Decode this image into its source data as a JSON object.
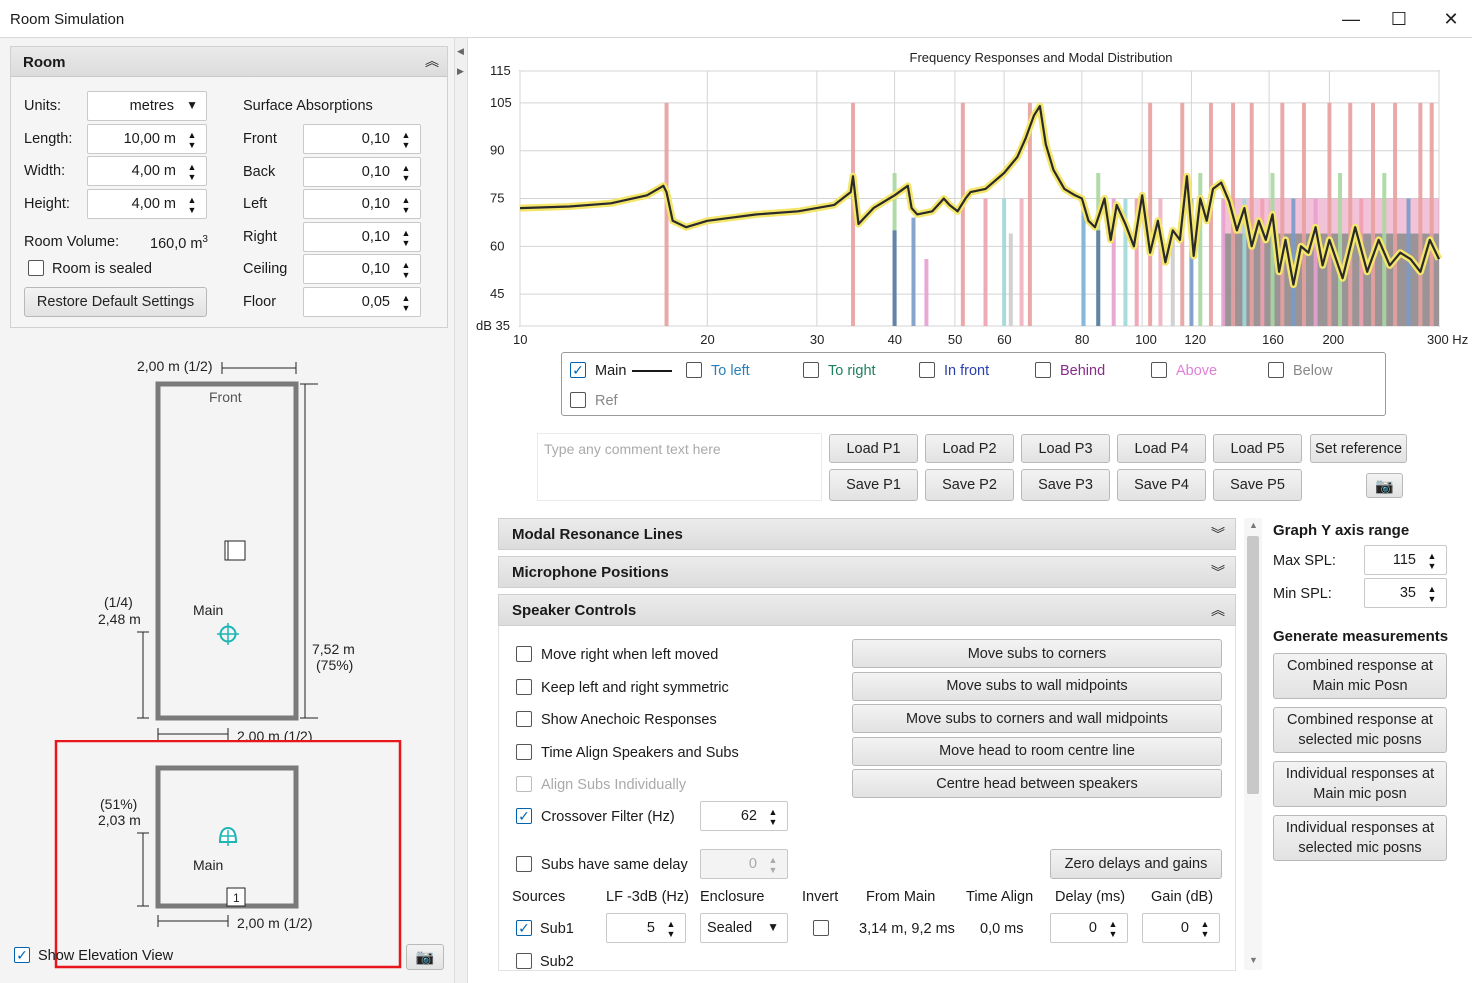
{
  "window": {
    "title": "Room Simulation",
    "minimize": "—",
    "maximize": "☐",
    "close": "✕"
  },
  "room": {
    "header": "Room",
    "collapse_icon": "chevron-double-up",
    "units_label": "Units:",
    "units_value": "metres",
    "length_label": "Length:",
    "length_value": "10,00 m",
    "width_label": "Width:",
    "width_value": "4,00 m",
    "height_label": "Height:",
    "height_value": "4,00 m",
    "volume_label": "Room Volume:",
    "volume_value": "160,0 m",
    "volume_sup": "3",
    "sealed_label": "Room is sealed",
    "restore_label": "Restore Default Settings",
    "absorption_title": "Surface Absorptions",
    "surfaces": [
      {
        "name": "Front",
        "value": "0,10"
      },
      {
        "name": "Back",
        "value": "0,10"
      },
      {
        "name": "Left",
        "value": "0,10"
      },
      {
        "name": "Right",
        "value": "0,10"
      },
      {
        "name": "Ceiling",
        "value": "0,10"
      },
      {
        "name": "Floor",
        "value": "0,05"
      }
    ]
  },
  "plan": {
    "top_dim": "2,00 m (1/2)",
    "front_label": "Front",
    "mic_label": "Main",
    "left_dim_a": "(1/4)",
    "left_dim_b": "2,48 m",
    "right_dim_a": "7,52 m",
    "right_dim_b": "(75%)",
    "bottom_dim": "2,00 m (1/2)"
  },
  "elevation": {
    "left_dim_a": "(51%)",
    "left_dim_b": "2,03 m",
    "mic_label": "Main",
    "speaker_num": "1",
    "bottom_dim": "2,00 m (1/2)",
    "show_label": "Show Elevation View"
  },
  "chart_data": {
    "type": "line",
    "title": "Frequency Responses and Modal Distribution",
    "xscale": "log",
    "xlim": [
      10,
      300
    ],
    "ylim": [
      35,
      115
    ],
    "x_ticks": [
      {
        "v": 10,
        "t": "10"
      },
      {
        "v": 20,
        "t": "20"
      },
      {
        "v": 30,
        "t": "30"
      },
      {
        "v": 40,
        "t": "40"
      },
      {
        "v": 50,
        "t": "50"
      },
      {
        "v": 60,
        "t": "60"
      },
      {
        "v": 80,
        "t": "80"
      },
      {
        "v": 100,
        "t": "100"
      },
      {
        "v": 120,
        "t": "120"
      },
      {
        "v": 160,
        "t": "160"
      },
      {
        "v": 200,
        "t": "200"
      },
      {
        "v": 300,
        "t": "300 Hz"
      }
    ],
    "y_ticks": [
      {
        "v": 115,
        "t": "115"
      },
      {
        "v": 105,
        "t": "105"
      },
      {
        "v": 90,
        "t": "90"
      },
      {
        "v": 75,
        "t": "75"
      },
      {
        "v": 60,
        "t": "60"
      },
      {
        "v": 45,
        "t": "45"
      },
      {
        "v": 35,
        "t": "dB 35"
      }
    ],
    "grid": true,
    "series": [
      {
        "name": "Main",
        "x": [
          10,
          12,
          14,
          16,
          17,
          17.2,
          17.6,
          18.5,
          20,
          24,
          28,
          32,
          34,
          34.3,
          35,
          37,
          40,
          42,
          42.6,
          43.5,
          46,
          47.5,
          48,
          49,
          50.5,
          52,
          53,
          56,
          60,
          63,
          65,
          67,
          68.5,
          70,
          72,
          75,
          78,
          80,
          82,
          84,
          86,
          87,
          89,
          91,
          94,
          97,
          100,
          103,
          106,
          109,
          112,
          115,
          118,
          121,
          124,
          127,
          130,
          134,
          138,
          142,
          146,
          150,
          154,
          158,
          162,
          166,
          170,
          175,
          180,
          185,
          190,
          195,
          200,
          210,
          220,
          230,
          240,
          250,
          260,
          270,
          280,
          290,
          300
        ],
        "y": [
          72,
          72.5,
          73.5,
          76,
          79,
          77,
          68,
          66,
          68,
          70,
          71,
          73,
          77,
          82,
          67,
          72,
          76,
          79,
          72,
          70,
          71,
          74,
          75,
          73,
          71,
          75,
          77,
          78,
          83,
          88,
          94,
          101,
          104,
          92,
          84,
          78,
          76,
          75,
          68,
          66,
          72,
          75,
          62,
          73,
          67,
          60,
          76,
          58,
          68,
          55,
          65,
          62,
          82,
          57,
          75,
          68,
          78,
          80,
          74,
          65,
          72,
          60,
          68,
          62,
          70,
          52,
          62,
          48,
          60,
          58,
          66,
          54,
          62,
          50,
          66,
          52,
          62,
          54,
          58,
          56,
          52,
          62,
          56
        ]
      }
    ],
    "modal_lines": [
      {
        "f": 17.2,
        "h": 105,
        "c": "#e8a0a0"
      },
      {
        "f": 34.3,
        "h": 105,
        "c": "#e8a0a0"
      },
      {
        "f": 40,
        "h": 83,
        "c": "#a8d8a0"
      },
      {
        "f": 40,
        "h": 65,
        "c": "#5b7aa8"
      },
      {
        "f": 42.9,
        "h": 69,
        "c": "#7a9ac8"
      },
      {
        "f": 45,
        "h": 56,
        "c": "#e8a0d0"
      },
      {
        "f": 51.5,
        "h": 105,
        "c": "#e8a0a0"
      },
      {
        "f": 56,
        "h": 75,
        "c": "#f0a0b0"
      },
      {
        "f": 60,
        "h": 75,
        "c": "#a0d8d8"
      },
      {
        "f": 61.5,
        "h": 64,
        "c": "#cccccc"
      },
      {
        "f": 64,
        "h": 75,
        "c": "#f0b0c0"
      },
      {
        "f": 66,
        "h": 105,
        "c": "#e8a0a0"
      },
      {
        "f": 80.5,
        "h": 75,
        "c": "#7ab0d8"
      },
      {
        "f": 85,
        "h": 83,
        "c": "#a8d8a0"
      },
      {
        "f": 85,
        "h": 65,
        "c": "#5b7aa8"
      },
      {
        "f": 90,
        "h": 75,
        "c": "#e8a0d0"
      },
      {
        "f": 94,
        "h": 75,
        "c": "#a0d8d8"
      },
      {
        "f": 98,
        "h": 75,
        "c": "#f0a0b0"
      },
      {
        "f": 103,
        "h": 105,
        "c": "#e8a0a0"
      },
      {
        "f": 107,
        "h": 75,
        "c": "#f0b0c0"
      },
      {
        "f": 112,
        "h": 64,
        "c": "#cccccc"
      },
      {
        "f": 116,
        "h": 105,
        "c": "#e8a0a0"
      },
      {
        "f": 120,
        "h": 75,
        "c": "#7a9ac8"
      },
      {
        "f": 124,
        "h": 83,
        "c": "#a8d8a0"
      },
      {
        "f": 129,
        "h": 105,
        "c": "#e8a0a0"
      },
      {
        "f": 135,
        "h": 75,
        "c": "#e8a0d0"
      },
      {
        "f": 140,
        "h": 105,
        "c": "#e8a0a0"
      },
      {
        "f": 146,
        "h": 75,
        "c": "#a0d8d8"
      },
      {
        "f": 150,
        "h": 105,
        "c": "#e8a0a0"
      },
      {
        "f": 156,
        "h": 75,
        "c": "#f0a0b0"
      },
      {
        "f": 162,
        "h": 83,
        "c": "#a8d8a0"
      },
      {
        "f": 168,
        "h": 105,
        "c": "#e8a0a0"
      },
      {
        "f": 175,
        "h": 75,
        "c": "#7a9ac8"
      },
      {
        "f": 182,
        "h": 105,
        "c": "#e8a0a0"
      },
      {
        "f": 190,
        "h": 75,
        "c": "#e8a0d0"
      },
      {
        "f": 200,
        "h": 105,
        "c": "#e8a0a0"
      },
      {
        "f": 208,
        "h": 83,
        "c": "#a8d8a0"
      },
      {
        "f": 216,
        "h": 105,
        "c": "#e8a0a0"
      },
      {
        "f": 225,
        "h": 75,
        "c": "#f0a0b0"
      },
      {
        "f": 235,
        "h": 105,
        "c": "#e8a0a0"
      },
      {
        "f": 245,
        "h": 83,
        "c": "#a8d8a0"
      },
      {
        "f": 255,
        "h": 105,
        "c": "#e8a0a0"
      },
      {
        "f": 268,
        "h": 75,
        "c": "#7a9ac8"
      },
      {
        "f": 280,
        "h": 105,
        "c": "#e8a0a0"
      },
      {
        "f": 292,
        "h": 105,
        "c": "#e8a0a0"
      }
    ],
    "dense_band": {
      "from": 135,
      "to": 300,
      "top": 64,
      "c": "#8c8c8c",
      "pink_top": 75,
      "pink": "#e78fb8"
    }
  },
  "legend": [
    {
      "label": "Main",
      "checked": true,
      "color": "#1a1a1a",
      "line": true
    },
    {
      "label": "To left",
      "checked": false,
      "color": "#2a7fb8"
    },
    {
      "label": "To right",
      "checked": false,
      "color": "#1f7f5f"
    },
    {
      "label": "In front",
      "checked": false,
      "color": "#2a3fb0"
    },
    {
      "label": "Behind",
      "checked": false,
      "color": "#8a2a8a"
    },
    {
      "label": "Above",
      "checked": false,
      "color": "#e07fd8"
    },
    {
      "label": "Below",
      "checked": false,
      "color": "#888888"
    },
    {
      "label": "Ref",
      "checked": false,
      "color": "#888888"
    }
  ],
  "comment_placeholder": "Type any comment text here",
  "presets": {
    "load": [
      "Load P1",
      "Load P2",
      "Load P3",
      "Load P4",
      "Load P5"
    ],
    "save": [
      "Save P1",
      "Save P2",
      "Save P3",
      "Save P4",
      "Save P5"
    ],
    "set_reference": "Set reference"
  },
  "sections": {
    "modal": "Modal Resonance Lines",
    "mic": "Microphone Positions",
    "speaker": "Speaker Controls"
  },
  "speaker": {
    "options": [
      {
        "label": "Move right when left moved",
        "checked": false,
        "disabled": false
      },
      {
        "label": "Keep left and right symmetric",
        "checked": false,
        "disabled": false
      },
      {
        "label": "Show Anechoic Responses",
        "checked": false,
        "disabled": false
      },
      {
        "label": "Time Align Speakers and Subs",
        "checked": false,
        "disabled": false
      },
      {
        "label": "Align Subs Individually",
        "checked": false,
        "disabled": true
      }
    ],
    "crossover_label": "Crossover Filter (Hz)",
    "crossover_value": "62",
    "same_delay_label": "Subs have same delay",
    "same_delay_value": "0",
    "move_buttons": [
      "Move subs to corners",
      "Move subs to wall midpoints",
      "Move subs to corners and wall midpoints",
      "Move head to room centre line",
      "Centre head between speakers"
    ],
    "zero_button": "Zero delays and gains",
    "columns": [
      "Sources",
      "LF -3dB (Hz)",
      "Enclosure",
      "Invert",
      "From Main",
      "Time Align",
      "Delay (ms)",
      "Gain (dB)"
    ],
    "sub1": {
      "name": "Sub1",
      "lf": "5",
      "enclosure": "Sealed",
      "from_main": "3,14 m, 9,2 ms",
      "time_align": "0,0 ms",
      "delay": "0",
      "gain": "0"
    },
    "sub2": {
      "name": "Sub2"
    }
  },
  "graph_y": {
    "title": "Graph Y axis range",
    "max_label": "Max SPL:",
    "max_value": "115",
    "min_label": "Min SPL:",
    "min_value": "35"
  },
  "generate": {
    "title": "Generate measurements",
    "buttons": [
      [
        "Combined response at",
        "Main mic Posn"
      ],
      [
        "Combined response at",
        "selected mic posns"
      ],
      [
        "Individual responses at",
        "Main mic posn"
      ],
      [
        "Individual responses at",
        "selected mic posns"
      ]
    ]
  }
}
